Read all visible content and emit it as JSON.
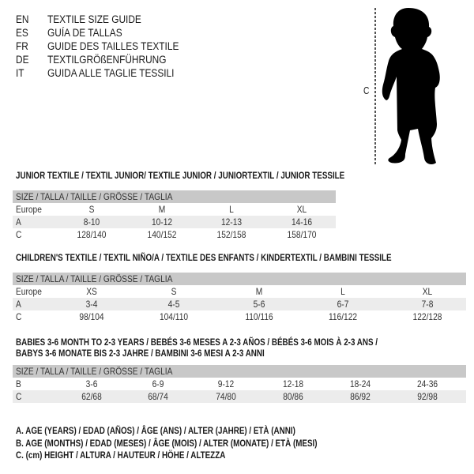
{
  "header": {
    "languages": [
      {
        "code": "EN",
        "title": "TEXTILE SIZE GUIDE"
      },
      {
        "code": "ES",
        "title": "GUÍA DE TALLAS"
      },
      {
        "code": "FR",
        "title": "GUIDE DES TAILLES TEXTILE"
      },
      {
        "code": "DE",
        "title": "TEXTILGRÖßENFÜHRUNG"
      },
      {
        "code": "IT",
        "title": "GUIDA ALLE TAGLIE TESSILI"
      }
    ],
    "figure_label": "C",
    "figure_icon": "child-silhouette-icon"
  },
  "tables": [
    {
      "title_lines": [
        "JUNIOR TEXTILE / TEXTIL JUNIOR/ TEXTILE JUNIOR / JUNIORTEXTIL / JUNIOR TESSILE"
      ],
      "header": "SIZE / TALLA / TAILLE / GRÖSSE / TAGLIA",
      "rows": [
        {
          "label": "Europe",
          "values": [
            "S",
            "M",
            "L",
            "XL"
          ]
        },
        {
          "label": "A",
          "values": [
            "8-10",
            "10-12",
            "12-13",
            "14-16"
          ]
        },
        {
          "label": "C",
          "values": [
            "128/140",
            "140/152",
            "152/158",
            "158/170"
          ]
        }
      ]
    },
    {
      "title_lines": [
        "CHILDREN'S TEXTILE / TEXTIL NIÑO/A / TEXTILE DES ENFANTS / KINDERTEXTIL / BAMBINI TESSILE"
      ],
      "header": "SIZE / TALLA / TAILLE / GRÖSSE / TAGLIA",
      "rows": [
        {
          "label": "Europe",
          "values": [
            "XS",
            "S",
            "M",
            "L",
            "XL"
          ]
        },
        {
          "label": "A",
          "values": [
            "3-4",
            "4-5",
            "5-6",
            "6-7",
            "7-8"
          ]
        },
        {
          "label": "C",
          "values": [
            "98/104",
            "104/110",
            "110/116",
            "116/122",
            "122/128"
          ]
        }
      ]
    },
    {
      "title_lines": [
        "BABIES 3-6 MONTH TO 2-3 YEARS / BEBÉS 3-6 MESES A 2-3 AÑOS / BÉBÉS 3-6 MOIS À 2-3 ANS /",
        "BABYS 3-6 MONATE BIS 2-3 JAHRE / BAMBINI 3-6 MESI A 2-3 ANNI"
      ],
      "header": "SIZE / TALLA / TAILLE / GRÖSSE / TAGLIA",
      "rows": [
        {
          "label": "B",
          "values": [
            "3-6",
            "6-9",
            "9-12",
            "12-18",
            "18-24",
            "24-36"
          ]
        },
        {
          "label": "C",
          "values": [
            "62/68",
            "68/74",
            "74/80",
            "80/86",
            "86/92",
            "92/98"
          ]
        }
      ]
    }
  ],
  "legend": [
    "A. AGE (YEARS) / EDAD (AÑOS) / ÂGE (ANS) / ALTER (JAHRE) / ETÀ (ANNI)",
    "B. AGE (MONTHS) / EDAD (MESES) / ÂGE (MOIS) / ALTER (MONATE) / ETÀ (MESI)",
    "C. (cm) HEIGHT / ALTURA / HAUTEUR / HÖHE / ALTEZZA"
  ]
}
